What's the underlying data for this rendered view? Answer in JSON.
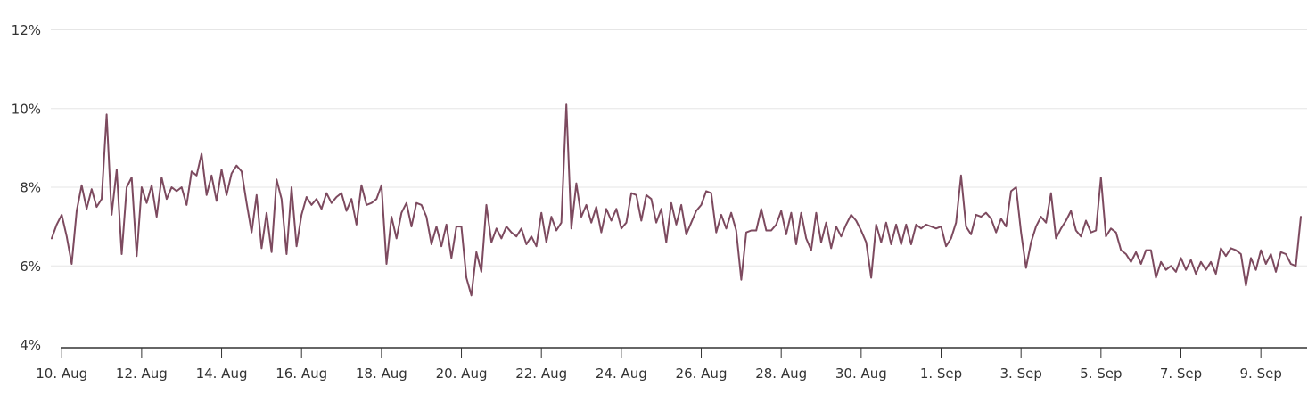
{
  "colors": {
    "line": "#7d4a5f",
    "grid": "#e6e6e6",
    "axis": "#333333",
    "label": "#333333",
    "background": "#ffffff"
  },
  "chart_data": {
    "type": "line",
    "title": "",
    "legend": false,
    "grid": true,
    "y_axis": {
      "unit": "%",
      "min": 4,
      "max": 12,
      "tick_values": [
        12,
        10,
        8,
        6,
        4
      ],
      "tick_labels": [
        "12%",
        "10%",
        "8%",
        "6%",
        "4%"
      ],
      "gridline_values": [
        12,
        10,
        8,
        6
      ]
    },
    "x_axis": {
      "tick_labels": [
        "10. Aug",
        "12. Aug",
        "14. Aug",
        "16. Aug",
        "18. Aug",
        "20. Aug",
        "22. Aug",
        "24. Aug",
        "26. Aug",
        "28. Aug",
        "30. Aug",
        "1. Sep",
        "3. Sep",
        "5. Sep",
        "7. Sep",
        "9. Sep"
      ],
      "first_tick_point_index": 2,
      "points_between_ticks": 16
    },
    "series": [
      {
        "color": "#7d4a5f",
        "points_per_day": 8,
        "unit": "%",
        "values": [
          6.7,
          7.05,
          7.3,
          6.75,
          6.05,
          7.4,
          8.05,
          7.45,
          7.95,
          7.5,
          7.7,
          9.85,
          7.3,
          8.45,
          6.3,
          8.0,
          8.25,
          6.25,
          8.0,
          7.6,
          8.05,
          7.25,
          8.25,
          7.7,
          8.0,
          7.9,
          8.0,
          7.55,
          8.4,
          8.3,
          8.85,
          7.8,
          8.3,
          7.65,
          8.45,
          7.8,
          8.35,
          8.55,
          8.4,
          7.6,
          6.85,
          7.8,
          6.45,
          7.35,
          6.35,
          8.2,
          7.7,
          6.3,
          8.0,
          6.5,
          7.3,
          7.75,
          7.55,
          7.7,
          7.45,
          7.85,
          7.6,
          7.75,
          7.85,
          7.4,
          7.7,
          7.05,
          8.05,
          7.55,
          7.6,
          7.7,
          8.05,
          6.05,
          7.25,
          6.7,
          7.35,
          7.6,
          7.0,
          7.6,
          7.55,
          7.25,
          6.55,
          7.0,
          6.5,
          7.05,
          6.2,
          7.0,
          7.0,
          5.7,
          5.25,
          6.35,
          5.85,
          7.55,
          6.6,
          6.95,
          6.7,
          7.0,
          6.85,
          6.75,
          6.95,
          6.55,
          6.75,
          6.5,
          7.35,
          6.6,
          7.25,
          6.9,
          7.1,
          10.1,
          6.95,
          8.1,
          7.25,
          7.55,
          7.1,
          7.5,
          6.85,
          7.45,
          7.15,
          7.45,
          6.95,
          7.1,
          7.85,
          7.8,
          7.15,
          7.8,
          7.7,
          7.1,
          7.45,
          6.6,
          7.6,
          7.05,
          7.55,
          6.8,
          7.1,
          7.4,
          7.55,
          7.9,
          7.85,
          6.85,
          7.3,
          6.95,
          7.35,
          6.9,
          5.65,
          6.85,
          6.9,
          6.9,
          7.45,
          6.9,
          6.9,
          7.05,
          7.4,
          6.8,
          7.35,
          6.55,
          7.35,
          6.7,
          6.4,
          7.35,
          6.6,
          7.1,
          6.45,
          7.0,
          6.75,
          7.05,
          7.3,
          7.15,
          6.9,
          6.6,
          5.7,
          7.05,
          6.6,
          7.1,
          6.55,
          7.05,
          6.55,
          7.05,
          6.55,
          7.05,
          6.95,
          7.05,
          7.0,
          6.95,
          7.0,
          6.5,
          6.7,
          7.1,
          8.3,
          7.0,
          6.8,
          7.3,
          7.25,
          7.35,
          7.2,
          6.85,
          7.2,
          7.0,
          7.9,
          8.0,
          6.85,
          5.95,
          6.6,
          7.0,
          7.25,
          7.1,
          7.85,
          6.7,
          6.95,
          7.15,
          7.4,
          6.9,
          6.75,
          7.15,
          6.85,
          6.9,
          8.25,
          6.75,
          6.95,
          6.85,
          6.4,
          6.3,
          6.1,
          6.35,
          6.05,
          6.4,
          6.4,
          5.7,
          6.1,
          5.9,
          6.0,
          5.85,
          6.2,
          5.9,
          6.15,
          5.8,
          6.1,
          5.9,
          6.1,
          5.8,
          6.45,
          6.25,
          6.45,
          6.4,
          6.3,
          5.5,
          6.2,
          5.9,
          6.4,
          6.05,
          6.3,
          5.85,
          6.35,
          6.3,
          6.05,
          6.0,
          7.25
        ]
      }
    ]
  }
}
